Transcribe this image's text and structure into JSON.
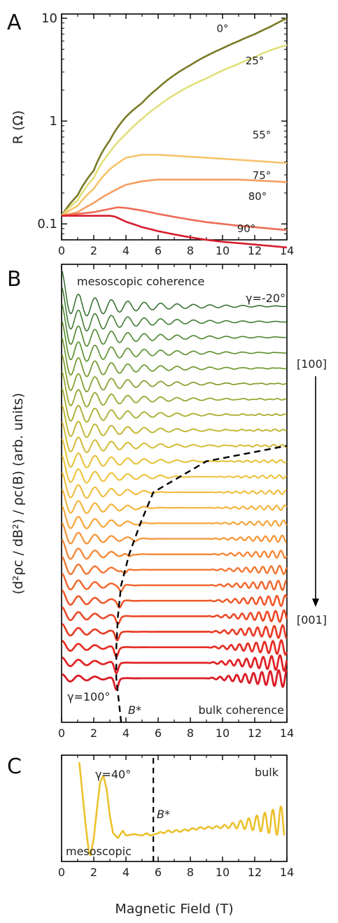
{
  "panels": {
    "a": "A",
    "b": "B",
    "c": "C"
  },
  "chart_data": [
    {
      "type": "line",
      "panel": "A",
      "ylabel": "R (Ω)",
      "yscale": "log",
      "xlim": [
        0,
        14
      ],
      "ylim": [
        0.07,
        11
      ],
      "xticks": [
        "0",
        "2",
        "4",
        "6",
        "8",
        "10",
        "12",
        "14"
      ],
      "yticks": [
        {
          "value": 0.1,
          "label": "0.1"
        },
        {
          "value": 1,
          "label": "1"
        },
        {
          "value": 10,
          "label": "10"
        }
      ],
      "series": [
        {
          "name": "0°",
          "color": "#7a7a26",
          "x": [
            0,
            1,
            2,
            3,
            4,
            5,
            6,
            7,
            8,
            9,
            10,
            11,
            12,
            13,
            14
          ],
          "y": [
            0.12,
            0.19,
            0.33,
            0.65,
            1.1,
            1.5,
            2.1,
            2.8,
            3.5,
            4.3,
            5.1,
            6.0,
            7.0,
            8.3,
            10.0
          ]
        },
        {
          "name": "25°",
          "color": "#e2e07a",
          "x": [
            0,
            1,
            2,
            3,
            4,
            5,
            6,
            7,
            8,
            9,
            10,
            11,
            12,
            13,
            14
          ],
          "y": [
            0.12,
            0.17,
            0.28,
            0.5,
            0.75,
            1.05,
            1.4,
            1.8,
            2.2,
            2.6,
            3.1,
            3.6,
            4.2,
            4.9,
            5.5
          ]
        },
        {
          "name": "55°",
          "color": "#f6c36a",
          "x": [
            0,
            1,
            2,
            3,
            4,
            5,
            6,
            7,
            8,
            9,
            10,
            11,
            12,
            13,
            14
          ],
          "y": [
            0.12,
            0.15,
            0.22,
            0.34,
            0.44,
            0.47,
            0.47,
            0.46,
            0.45,
            0.44,
            0.43,
            0.42,
            0.41,
            0.4,
            0.39
          ]
        },
        {
          "name": "75°",
          "color": "#f59e60",
          "x": [
            0,
            1,
            2,
            3,
            4,
            5,
            6,
            7,
            8,
            9,
            10,
            11,
            12,
            13,
            14
          ],
          "y": [
            0.12,
            0.13,
            0.16,
            0.2,
            0.24,
            0.26,
            0.27,
            0.27,
            0.27,
            0.27,
            0.27,
            0.27,
            0.265,
            0.26,
            0.255
          ]
        },
        {
          "name": "80°",
          "color": "#ee6c55",
          "x": [
            0,
            1,
            2,
            3,
            3.5,
            4,
            5,
            6,
            7,
            8,
            9,
            10,
            11,
            12,
            13,
            14
          ],
          "y": [
            0.12,
            0.125,
            0.13,
            0.14,
            0.145,
            0.143,
            0.135,
            0.125,
            0.117,
            0.11,
            0.104,
            0.1,
            0.096,
            0.093,
            0.09,
            0.087
          ]
        },
        {
          "name": "90°",
          "color": "#d81c2c",
          "x": [
            0,
            1,
            2,
            3,
            3.3,
            4,
            5,
            6,
            7,
            8,
            9,
            10,
            11,
            12,
            13,
            14
          ],
          "y": [
            0.12,
            0.12,
            0.12,
            0.12,
            0.118,
            0.105,
            0.093,
            0.085,
            0.079,
            0.074,
            0.07,
            0.067,
            0.065,
            0.063,
            0.061,
            0.059
          ]
        }
      ]
    },
    {
      "type": "line",
      "panel": "B",
      "ylabel": "(d²ρc / dB²) / ρc(B) (arb. units)",
      "xlim": [
        0,
        14
      ],
      "xticks": [
        "0",
        "2",
        "4",
        "6",
        "8",
        "10",
        "12",
        "14"
      ],
      "annotations": {
        "top_left": "mesoscopic coherence",
        "top_right": "γ=-20°",
        "bottom_left": "γ=100°",
        "bottom_right": "bulk coherence",
        "bstar": "B*",
        "dir_top": "[100]",
        "dir_bottom": "[001]"
      },
      "gamma_start_deg": -20,
      "gamma_end_deg": 100,
      "gamma_step_deg": 5,
      "series_count": 25,
      "series_colors": [
        "#2d6b2b",
        "#3c7a2c",
        "#4d862e",
        "#5e912f",
        "#70992f",
        "#84a130",
        "#98a830",
        "#acae31",
        "#c0b631",
        "#d3bb33",
        "#e6c037",
        "#edc23c",
        "#f2bd40",
        "#f5b43f",
        "#f6a63d",
        "#f6963a",
        "#f58736",
        "#f37732",
        "#f1672d",
        "#ef5729",
        "#ec4826",
        "#e93a24",
        "#e52d24",
        "#e02225",
        "#da1c26"
      ],
      "b_star_curve": {
        "gamma_deg": [
          100,
          90,
          80,
          70,
          60,
          50,
          40,
          30,
          25
        ],
        "B": [
          3.4,
          3.4,
          3.5,
          3.7,
          4.2,
          4.9,
          5.7,
          9.0,
          14.0
        ]
      }
    },
    {
      "type": "line",
      "panel": "C",
      "xlabel": "Magnetic Field (T)",
      "xlim": [
        0,
        14
      ],
      "xticks": [
        "0",
        "2",
        "4",
        "6",
        "8",
        "10",
        "12",
        "14"
      ],
      "annotations": {
        "gamma": "γ=40°",
        "bulk": "bulk",
        "mesoscopic": "mesoscopic",
        "bstar": "B*"
      },
      "bstar_B": 5.7,
      "series": [
        {
          "name": "γ=40°",
          "color": "#ebc12c",
          "x": [
            1.1,
            1.3,
            1.5,
            1.7,
            1.8,
            2.0,
            2.2,
            2.4,
            2.6,
            2.8,
            3.0,
            3.2,
            3.5,
            3.8,
            4.0,
            4.5,
            5.0,
            5.3,
            5.5,
            5.8,
            6.5,
            7.5,
            8.5,
            9.5,
            10.0,
            11.0,
            12.0,
            13.0,
            13.8
          ],
          "y": [
            1.0,
            0.35,
            -0.3,
            -0.85,
            -0.9,
            -0.55,
            0.05,
            0.6,
            0.72,
            0.45,
            -0.1,
            -0.45,
            -0.55,
            -0.4,
            -0.5,
            -0.47,
            -0.5,
            -0.45,
            -0.5,
            -0.47,
            -0.42,
            -0.4,
            -0.35,
            -0.33,
            -0.32,
            -0.28,
            -0.25,
            -0.22,
            -0.2
          ]
        }
      ]
    }
  ]
}
